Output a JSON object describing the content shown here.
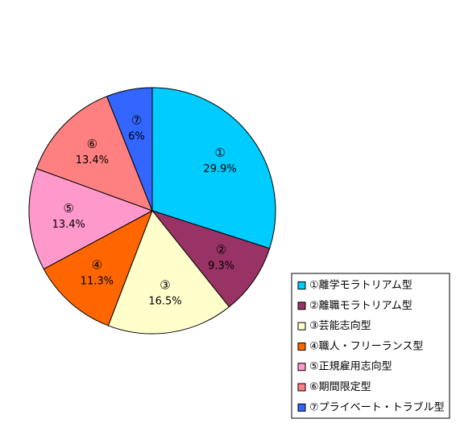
{
  "chart_data": {
    "type": "pie",
    "categories": [
      "①離学モラトリアム型",
      "②離職モラトリアム型",
      "③芸能志向型",
      "④職人・フリーランス型",
      "⑤正規雇用志向型",
      "⑥期間限定型",
      "⑦プライベート・トラブル型"
    ],
    "label_numbers": [
      "①",
      "②",
      "③",
      "④",
      "⑤",
      "⑥",
      "⑦"
    ],
    "values": [
      29.9,
      9.3,
      16.5,
      11.3,
      13.4,
      13.4,
      6
    ],
    "value_labels": [
      "29.9%",
      "9.3%",
      "16.5%",
      "11.3%",
      "13.4%",
      "13.4%",
      "6%"
    ],
    "colors": [
      "#00ccff",
      "#993366",
      "#ffffcc",
      "#ff6600",
      "#ff99cc",
      "#ff8080",
      "#3366ff"
    ],
    "legend": "bottom-right"
  }
}
